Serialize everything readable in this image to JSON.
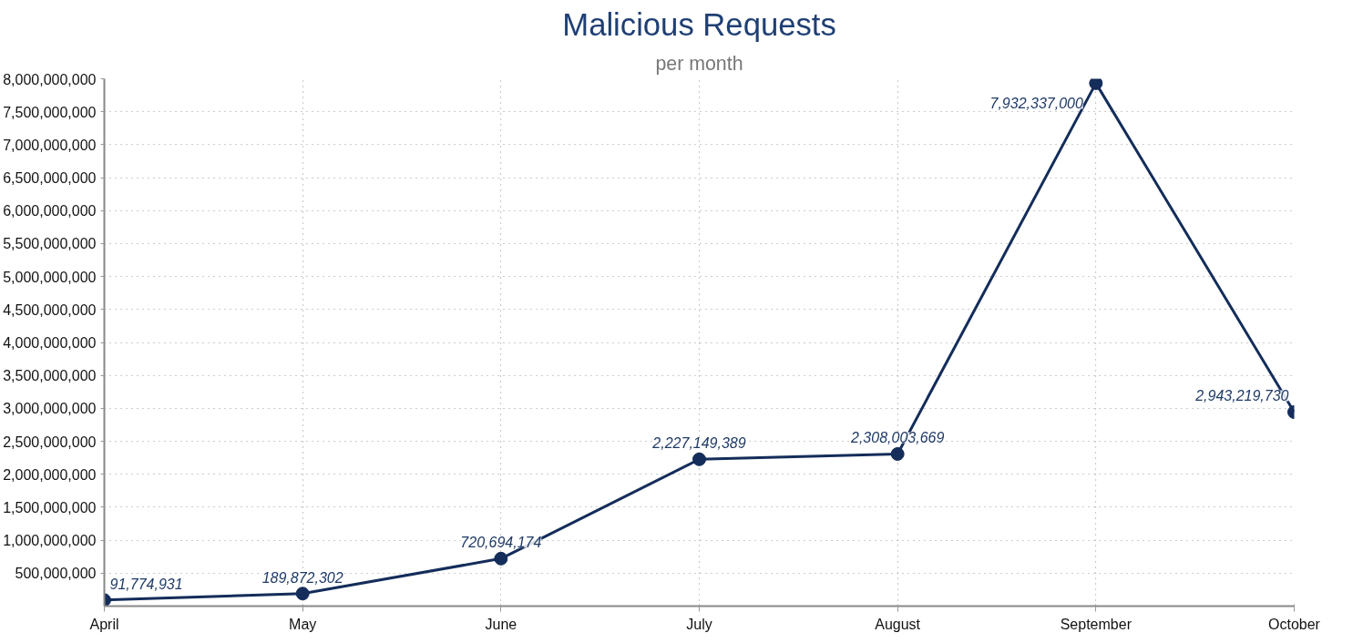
{
  "chart_data": {
    "type": "line",
    "title": "Malicious Requests",
    "subtitle": "per month",
    "categories": [
      "April",
      "May",
      "June",
      "July",
      "August",
      "September",
      "October"
    ],
    "series": [
      {
        "color": "#142d5a",
        "values": [
          91774931,
          189872302,
          720694174,
          2227149389,
          2308003669,
          7932337000,
          2943219730
        ],
        "value_labels": [
          "91,774,931",
          "189,872,302",
          "720,694,174",
          "2,227,149,389",
          "2,308,003,669",
          "7,932,337,000",
          "2,943,219,730"
        ]
      }
    ],
    "ylim": [
      0,
      8000000000
    ],
    "yticks": [
      {
        "value": 500000000,
        "label": "500,000,000"
      },
      {
        "value": 1000000000,
        "label": "1,000,000,000"
      },
      {
        "value": 1500000000,
        "label": "1,500,000,000"
      },
      {
        "value": 2000000000,
        "label": "2,000,000,000"
      },
      {
        "value": 2500000000,
        "label": "2,500,000,000"
      },
      {
        "value": 3000000000,
        "label": "3,000,000,000"
      },
      {
        "value": 3500000000,
        "label": "3,500,000,000"
      },
      {
        "value": 4000000000,
        "label": "4,000,000,000"
      },
      {
        "value": 4500000000,
        "label": "4,500,000,000"
      },
      {
        "value": 5000000000,
        "label": "5,000,000,000"
      },
      {
        "value": 5500000000,
        "label": "5,500,000,000"
      },
      {
        "value": 6000000000,
        "label": "6,000,000,000"
      },
      {
        "value": 6500000000,
        "label": "6,500,000,000"
      },
      {
        "value": 7000000000,
        "label": "7,000,000,000"
      },
      {
        "value": 7500000000,
        "label": "7,500,000,000"
      },
      {
        "value": 8000000000,
        "label": "8,000,000,000"
      }
    ],
    "grid": true,
    "marker": "circle",
    "line_style": "solid"
  }
}
